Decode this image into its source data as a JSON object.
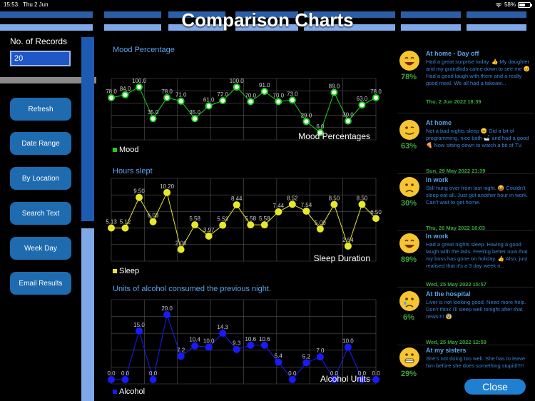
{
  "status_bar": {
    "time": "15:53",
    "date": "Thu 2 Jun",
    "battery": "58%",
    "battery_level": 0.58
  },
  "header": {
    "title": "Comparison Charts"
  },
  "sidebar": {
    "records_label": "No. of Records",
    "records_value": "20",
    "buttons": [
      "Refresh",
      "Date Range",
      "By Location",
      "Search Text",
      "Week Day",
      "Email Results"
    ]
  },
  "colors": {
    "mood": "#19d119",
    "sleep": "#e8e82a",
    "alcohol": "#1a1aff",
    "accent": "#1e6bb0",
    "entry_title": "#5aa3ea",
    "entry_body": "#3b82d6",
    "entry_date": "#3aa83a"
  },
  "chart_data": [
    {
      "type": "line",
      "title": "Mood Percentage",
      "overlay_label": "Mood Percentages",
      "legend": "Mood",
      "series": [
        {
          "name": "Mood",
          "values": [
            78,
            84,
            100,
            35,
            78,
            71,
            35,
            61,
            72,
            100,
            70,
            91,
            70,
            73,
            29,
            6,
            89,
            30,
            63,
            78
          ]
        }
      ],
      "labels": [
        "78.0",
        "84.0",
        "100.0",
        "35.0",
        "78.0",
        "71.0",
        "35.0",
        "61.0",
        "72.0",
        "100.0",
        "70.0",
        "91.0",
        "70.0",
        "73.0",
        "29.0",
        "6.0",
        "89.0",
        "30.0",
        "63.0",
        "78.0"
      ],
      "ylim": [
        0,
        100
      ]
    },
    {
      "type": "line",
      "title": "Hours slept",
      "overlay_label": "Sleep Duration",
      "legend": "Sleep",
      "series": [
        {
          "name": "Sleep",
          "values": [
            5.13,
            5.12,
            9.5,
            6.03,
            10.2,
            2.06,
            5.58,
            3.97,
            5.53,
            8.44,
            5.58,
            5.58,
            7.44,
            8.52,
            7.54,
            5.0,
            8.5,
            2.54,
            8.5,
            6.5
          ]
        }
      ],
      "labels": [
        "5.13",
        "5.12",
        "9.50",
        "6.03",
        "10.20",
        "2.06",
        "5.58",
        "3.97",
        "5.53",
        "8.44",
        "5.58",
        "5.58",
        "7.44",
        "8.52",
        "7.54",
        "5.00",
        "8.50",
        "2.54",
        "8.50",
        "6.50"
      ],
      "ylim": [
        1,
        11
      ]
    },
    {
      "type": "line",
      "title": "Units of alcohol consumed the previous night.",
      "overlay_label": "Alcohol Units",
      "legend": "Alcohol",
      "series": [
        {
          "name": "Alcohol",
          "values": [
            0,
            0,
            15,
            0,
            20,
            7.2,
            10.4,
            10,
            14.3,
            9.3,
            10.6,
            10.6,
            5.4,
            0,
            5.2,
            7,
            0,
            10,
            0,
            0
          ]
        }
      ],
      "labels": [
        "0.0",
        "0.0",
        "15.0",
        "0.0",
        "20.0",
        "7.2",
        "10.4",
        "10.0",
        "14.3",
        "9.3",
        "10.6",
        "10.6",
        "5.4",
        "0.0",
        "5.2",
        "7.0",
        "0.0",
        "10.0",
        "0.0",
        "0.0"
      ],
      "ylim": [
        0,
        22
      ]
    }
  ],
  "entries": [
    {
      "pct": "78%",
      "mood": "laugh",
      "title": "At home - Day off",
      "body": "Had a great surprise today. 👍 My daughter and my grandkids came down to see me 😊 Had a good laugh with them and a really good meal. We all had a takeaw...",
      "date": "Thu, 2 Jun 2022 18:39"
    },
    {
      "pct": "63%",
      "mood": "wink",
      "title": "At home",
      "body": "Not a bad nights sleep 😑 Did a bit of programming, nice bath 🛁 and had a good 🍕 Now sitting down to watch a bit of TV.",
      "date": "Sun, 29 May 2022 21:39"
    },
    {
      "pct": "30%",
      "mood": "sad",
      "title": "In work",
      "body": "Still hung over from last night. 😝 Couldn't sleep eat all. Just got another hour in work. Can't wait to get home.",
      "date": "Thu, 26 May 2022 16:03"
    },
    {
      "pct": "89%",
      "mood": "laugh",
      "title": "In work",
      "body": "Had a great nights sleep. Having a good laugh with the lads. Feeling better now that my boss has gone on holiday. 👍 Also, just realised that it's a 3 day week n...",
      "date": "Wed, 25 May 2022 15:57"
    },
    {
      "pct": "6%",
      "mood": "cry",
      "title": "At the hospital",
      "body": "Liver is not looking good. Need more help. Don't think I'll sleep well tonight after that news!!!! 😨",
      "date": "Wed, 25 May 2022 12:59"
    },
    {
      "pct": "29%",
      "mood": "grimace",
      "title": "At my sisters",
      "body": "She's not doing too well. She has to leave him before she does something stupid!!!!!",
      "date": ""
    }
  ],
  "close_label": "Close"
}
